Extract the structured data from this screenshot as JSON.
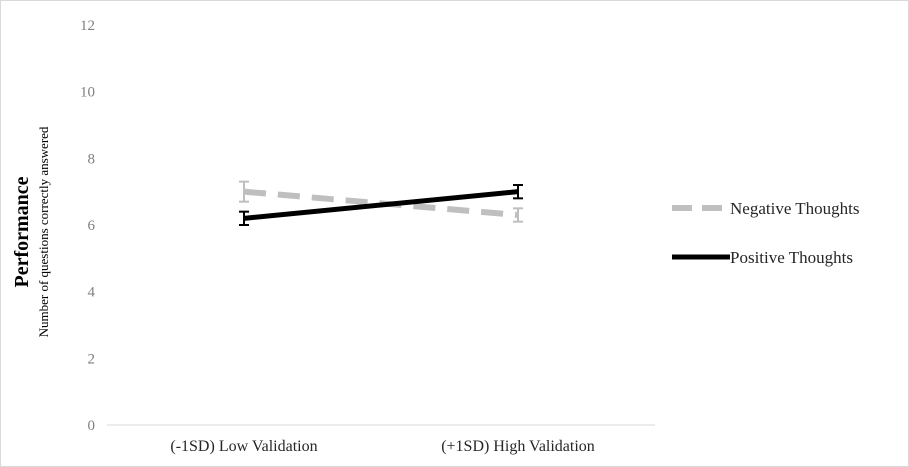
{
  "chart_data": {
    "type": "line",
    "categories": [
      "(-1SD) Low Validation",
      "(+1SD) High Validation"
    ],
    "ylabel": "Performance",
    "ylabel_sub": "Number of questions correctly answered",
    "ylim": [
      0,
      12
    ],
    "yticks": [
      "0",
      "2",
      "4",
      "6",
      "8",
      "10",
      "12"
    ],
    "grid": false,
    "legend_position": "right",
    "series": [
      {
        "name": "Negative Thoughts",
        "values": [
          7.0,
          6.3
        ],
        "error": [
          0.3,
          0.2
        ],
        "color": "#bfbfbf",
        "style": "dashed"
      },
      {
        "name": "Positive Thoughts",
        "values": [
          6.2,
          7.0
        ],
        "error": [
          0.2,
          0.2
        ],
        "color": "#000000",
        "style": "solid"
      }
    ]
  }
}
